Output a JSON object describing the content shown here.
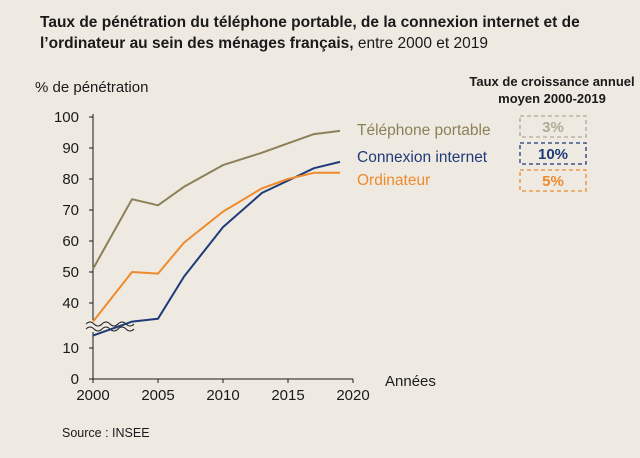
{
  "title": {
    "bold": "Taux de pénétration du téléphone portable, de la connexion internet et de l’ordinateur au sein des ménages français,",
    "normal": " entre 2000 et 2019"
  },
  "source": "Source : INSEE",
  "colors": {
    "background": "#eeeae2",
    "telephone": "#8c8058",
    "internet": "#1f3a78",
    "ordinateur": "#ef8a2c",
    "axis": "#1a1a1a"
  },
  "chart_data": {
    "type": "line",
    "ylabel": "% de pénétration",
    "xlabel": "Années",
    "xlim": [
      2000,
      2020
    ],
    "x_ticks": [
      2000,
      2005,
      2010,
      2015,
      2020
    ],
    "y_ticks_upper": [
      40,
      50,
      60,
      70,
      80,
      90,
      100
    ],
    "y_ticks_lower": [
      0,
      10
    ],
    "axis_break": true,
    "grid": false,
    "legend_placement": "inline-right",
    "series": [
      {
        "name": "Téléphone portable",
        "color": "#8c8058",
        "points": [
          [
            2000,
            51
          ],
          [
            2003,
            73.5
          ],
          [
            2005,
            71.5
          ],
          [
            2007,
            77.5
          ],
          [
            2010,
            84.5
          ],
          [
            2013,
            88.5
          ],
          [
            2015,
            91.5
          ],
          [
            2017,
            94.5
          ],
          [
            2019,
            95.5
          ]
        ]
      },
      {
        "name": "Connexion internet",
        "color": "#1f3a78",
        "points": [
          [
            2000,
            14
          ],
          [
            2003,
            18.5
          ],
          [
            2005,
            21
          ],
          [
            2007,
            48.5
          ],
          [
            2010,
            64.5
          ],
          [
            2013,
            75.5
          ],
          [
            2015,
            79.5
          ],
          [
            2017,
            83.5
          ],
          [
            2019,
            85.5
          ]
        ]
      },
      {
        "name": "Ordinateur",
        "color": "#ef8a2c",
        "points": [
          [
            2000,
            34
          ],
          [
            2003,
            50
          ],
          [
            2005,
            49.5
          ],
          [
            2007,
            59.5
          ],
          [
            2010,
            69.5
          ],
          [
            2013,
            77
          ],
          [
            2015,
            80
          ],
          [
            2017,
            82
          ],
          [
            2019,
            82
          ]
        ]
      }
    ],
    "growth": {
      "title": "Taux de croissance annuel moyen 2000-2019",
      "items": [
        {
          "series": "Téléphone portable",
          "value": "3%",
          "color": "#b0aa98"
        },
        {
          "series": "Connexion internet",
          "value": "10%",
          "color": "#1f3a78"
        },
        {
          "series": "Ordinateur",
          "value": "5%",
          "color": "#ef8a2c"
        }
      ]
    }
  }
}
